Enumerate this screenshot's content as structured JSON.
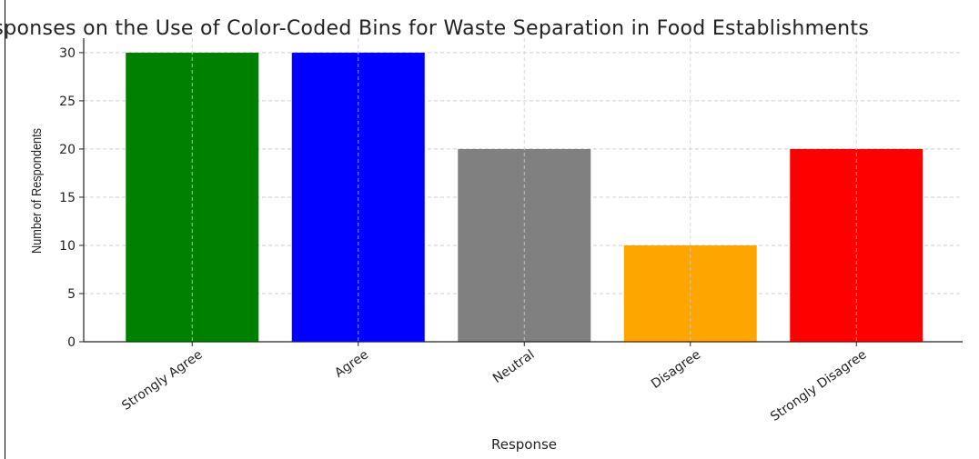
{
  "chart_data": {
    "type": "bar",
    "title": "Responses on the Use of Color-Coded Bins for Waste Separation in Food Establishments",
    "xlabel": "Response",
    "ylabel": "Number of Respondents",
    "categories": [
      "Strongly Agree",
      "Agree",
      "Neutral",
      "Disagree",
      "Strongly Disagree"
    ],
    "values": [
      30,
      30,
      20,
      10,
      20
    ],
    "colors": [
      "#008000",
      "#0000ff",
      "#808080",
      "#ffa500",
      "#ff0000"
    ],
    "ylim": [
      0,
      31.5
    ],
    "yticks": [
      0,
      5,
      10,
      15,
      20,
      25,
      30
    ],
    "grid": true,
    "grid_style": "dashed",
    "x_tick_rotation_deg": 35
  }
}
